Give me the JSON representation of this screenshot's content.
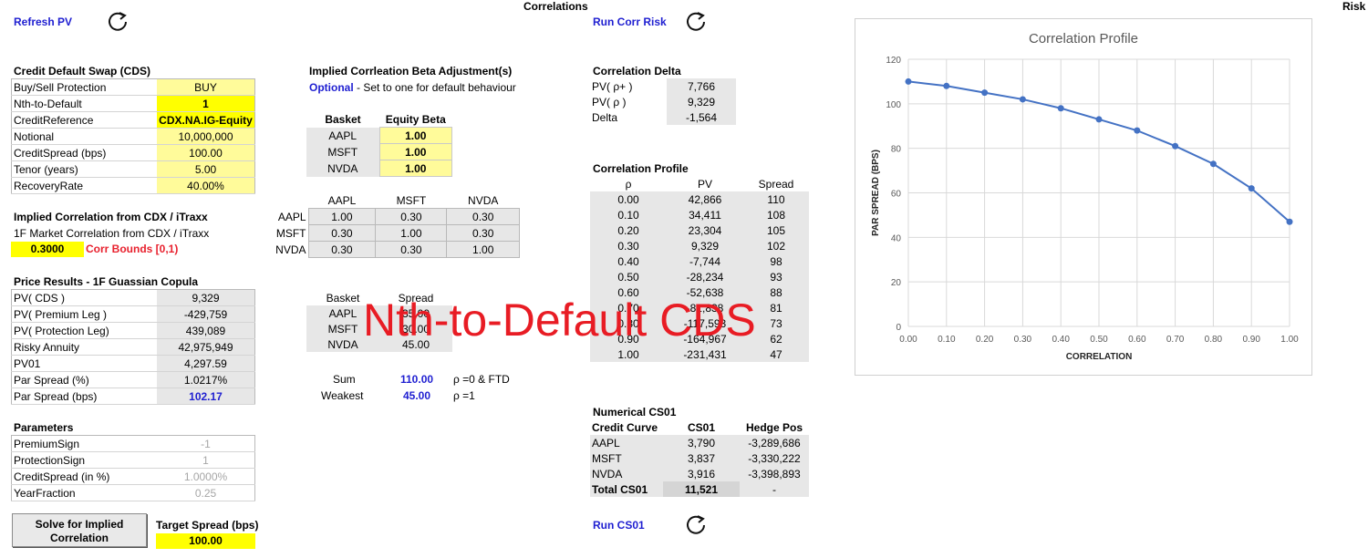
{
  "headers": {
    "correlations": "Correlations",
    "risk": "Risk"
  },
  "actions": {
    "refresh_pv": "Refresh PV",
    "run_corr_risk": "Run Corr Risk",
    "run_cs01": "Run CS01",
    "solve_line1": "Solve for Implied",
    "solve_line2": "Correlation"
  },
  "cds": {
    "title": "Credit Default Swap (CDS)",
    "rows": [
      {
        "label": "Buy/Sell Protection",
        "value": "BUY"
      },
      {
        "label": "Nth-to-Default",
        "value": "1"
      },
      {
        "label": "CreditReference",
        "value": "CDX.NA.IG-Equity"
      },
      {
        "label": "Notional",
        "value": "10,000,000"
      },
      {
        "label": "CreditSpread (bps)",
        "value": "100.00"
      },
      {
        "label": "Tenor (years)",
        "value": "5.00"
      },
      {
        "label": "RecoveryRate",
        "value": "40.00%"
      }
    ]
  },
  "implied_corr": {
    "title": "Implied Correlation from CDX / iTraxx",
    "subtitle": "1F Market Correlation from CDX / iTraxx",
    "value": "0.3000",
    "bounds": "Corr Bounds [0,1)"
  },
  "price_results": {
    "title": "Price Results - 1F Guassian Copula",
    "rows": [
      {
        "label": "PV( CDS )",
        "value": "9,329"
      },
      {
        "label": "PV( Premium Leg )",
        "value": "-429,759"
      },
      {
        "label": "PV( Protection Leg)",
        "value": "439,089"
      },
      {
        "label": "Risky Annuity",
        "value": "42,975,949"
      },
      {
        "label": "PV01",
        "value": "4,297.59"
      },
      {
        "label": "Par Spread (%)",
        "value": "1.0217%"
      },
      {
        "label": "Par Spread (bps)",
        "value": "102.17"
      }
    ]
  },
  "parameters": {
    "title": "Parameters",
    "rows": [
      {
        "label": "PremiumSign",
        "value": "-1"
      },
      {
        "label": "ProtectionSign",
        "value": "1"
      },
      {
        "label": "CreditSpread (in %)",
        "value": "1.0000%"
      },
      {
        "label": "YearFraction",
        "value": "0.25"
      }
    ]
  },
  "target": {
    "label": "Target Spread (bps)",
    "value": "100.00"
  },
  "beta": {
    "title": "Implied Corrleation Beta Adjustment(s)",
    "optional": "Optional",
    "note": " - Set to one for default behaviour",
    "col_basket": "Basket",
    "col_beta": "Equity Beta",
    "rows": [
      {
        "name": "AAPL",
        "beta": "1.00"
      },
      {
        "name": "MSFT",
        "beta": "1.00"
      },
      {
        "name": "NVDA",
        "beta": "1.00"
      }
    ]
  },
  "matrix": {
    "cols": [
      "AAPL",
      "MSFT",
      "NVDA"
    ],
    "rows": [
      {
        "name": "AAPL",
        "vals": [
          "1.00",
          "0.30",
          "0.30"
        ]
      },
      {
        "name": "MSFT",
        "vals": [
          "0.30",
          "1.00",
          "0.30"
        ]
      },
      {
        "name": "NVDA",
        "vals": [
          "0.30",
          "0.30",
          "1.00"
        ]
      }
    ]
  },
  "basket_spread": {
    "col_basket": "Basket",
    "col_spread": "Spread",
    "rows": [
      {
        "name": "AAPL",
        "spread": "35.00"
      },
      {
        "name": "MSFT",
        "spread": "30.00"
      },
      {
        "name": "NVDA",
        "spread": "45.00"
      }
    ],
    "sum_label": "Sum",
    "sum_value": "110.00",
    "sum_note": "ρ =0 & FTD",
    "weakest_label": "Weakest",
    "weakest_value": "45.00",
    "weakest_note": "ρ =1"
  },
  "corr_delta": {
    "title": "Correlation Delta",
    "rows": [
      {
        "label": "PV( ρ+ )",
        "value": "7,766"
      },
      {
        "label": "PV( ρ )",
        "value": "9,329"
      },
      {
        "label": "Delta",
        "value": "-1,564"
      }
    ]
  },
  "corr_profile": {
    "title": "Correlation Profile",
    "col_rho": "ρ",
    "col_pv": "PV",
    "col_spread": "Spread",
    "rows": [
      {
        "rho": "0.00",
        "pv": "42,866",
        "spread": "110"
      },
      {
        "rho": "0.10",
        "pv": "34,411",
        "spread": "108"
      },
      {
        "rho": "0.20",
        "pv": "23,304",
        "spread": "105"
      },
      {
        "rho": "0.30",
        "pv": "9,329",
        "spread": "102"
      },
      {
        "rho": "0.40",
        "pv": "-7,744",
        "spread": "98"
      },
      {
        "rho": "0.50",
        "pv": "-28,234",
        "spread": "93"
      },
      {
        "rho": "0.60",
        "pv": "-52,638",
        "spread": "88"
      },
      {
        "rho": "0.70",
        "pv": "-81,838",
        "spread": "81"
      },
      {
        "rho": "0.80",
        "pv": "-117,593",
        "spread": "73"
      },
      {
        "rho": "0.90",
        "pv": "-164,967",
        "spread": "62"
      },
      {
        "rho": "1.00",
        "pv": "-231,431",
        "spread": "47"
      }
    ]
  },
  "cs01": {
    "title": "Numerical CS01",
    "col_curve": "Credit Curve",
    "col_cs01": "CS01",
    "col_hedge": "Hedge Pos",
    "rows": [
      {
        "name": "AAPL",
        "cs01": "3,790",
        "hedge": "-3,289,686"
      },
      {
        "name": "MSFT",
        "cs01": "3,837",
        "hedge": "-3,330,222"
      },
      {
        "name": "NVDA",
        "cs01": "3,916",
        "hedge": "-3,398,893"
      }
    ],
    "total_label": "Total CS01",
    "total_value": "11,521",
    "total_hedge": "-"
  },
  "watermark": "Nth-to-Default CDS",
  "chart_data": {
    "type": "line",
    "title": "Correlation Profile",
    "xlabel": "CORRELATION",
    "ylabel": "PAR SPREAD  (BPS)",
    "x": [
      0.0,
      0.1,
      0.2,
      0.3,
      0.4,
      0.5,
      0.6,
      0.7,
      0.8,
      0.9,
      1.0
    ],
    "x_ticks": [
      "0.00",
      "0.10",
      "0.20",
      "0.30",
      "0.40",
      "0.50",
      "0.60",
      "0.70",
      "0.80",
      "0.90",
      "1.00"
    ],
    "y_ticks": [
      "0",
      "20",
      "40",
      "60",
      "80",
      "100",
      "120"
    ],
    "series": [
      {
        "values": [
          110,
          108,
          105,
          102,
          98,
          93,
          88,
          81,
          73,
          62,
          47
        ]
      }
    ],
    "xlim": [
      0,
      1
    ],
    "ylim": [
      0,
      120
    ],
    "grid": true,
    "color": "#4472c4"
  }
}
